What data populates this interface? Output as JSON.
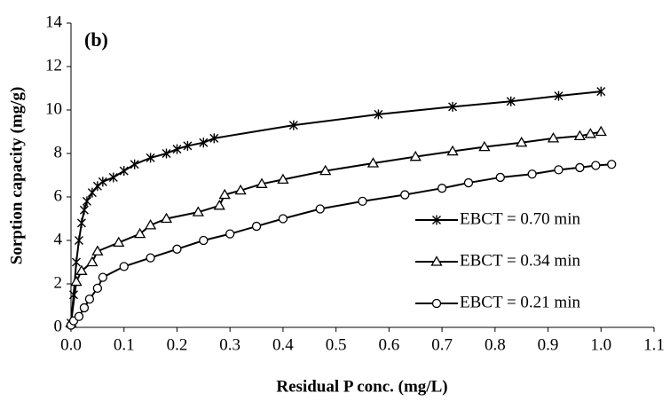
{
  "chart_data": {
    "type": "line",
    "annotation": "(b)",
    "x_label": "Residual P conc. (mg/L)",
    "y_label": "Sorption capacity (mg/g)",
    "xlim": [
      0,
      1.1
    ],
    "xticks": [
      {
        "value": 0,
        "label": "0.0"
      },
      0.1,
      0.2,
      0.3,
      0.4,
      0.5,
      0.6,
      0.7,
      0.8,
      0.9,
      {
        "value": 1,
        "label": "1.0"
      },
      1.1
    ],
    "ylim": [
      0,
      14
    ],
    "yticks": [
      0,
      2,
      4,
      6,
      8,
      10,
      12,
      14
    ],
    "legend": "lower right",
    "series": [
      {
        "name": "EBCT = 0.70 min",
        "color": "#000000",
        "marker": "asterisk",
        "x": [
          0,
          0.005,
          0.01,
          0.015,
          0.02,
          0.025,
          0.03,
          0.04,
          0.05,
          0.06,
          0.08,
          0.1,
          0.12,
          0.15,
          0.18,
          0.2,
          0.22,
          0.25,
          0.27,
          0.42,
          0.58,
          0.72,
          0.83,
          0.92,
          1.0
        ],
        "values": [
          0.2,
          1.5,
          3,
          4,
          4.8,
          5.4,
          5.8,
          6.2,
          6.5,
          6.7,
          6.9,
          7.2,
          7.5,
          7.8,
          8.0,
          8.2,
          8.35,
          8.5,
          8.7,
          9.3,
          9.8,
          10.15,
          10.4,
          10.65,
          10.85
        ]
      },
      {
        "name": "EBCT = 0.34 min",
        "color": "#000000",
        "marker": "triangle",
        "x": [
          0,
          0.01,
          0.02,
          0.04,
          0.05,
          0.09,
          0.13,
          0.15,
          0.18,
          0.24,
          0.28,
          0.29,
          0.32,
          0.36,
          0.4,
          0.48,
          0.57,
          0.65,
          0.72,
          0.78,
          0.85,
          0.91,
          0.96,
          0.98,
          1.0
        ],
        "values": [
          0.2,
          2.1,
          2.6,
          3.0,
          3.5,
          3.9,
          4.3,
          4.7,
          5.0,
          5.3,
          5.6,
          6.1,
          6.3,
          6.6,
          6.8,
          7.2,
          7.55,
          7.85,
          8.1,
          8.3,
          8.5,
          8.7,
          8.8,
          8.9,
          9.0
        ]
      },
      {
        "name": "EBCT = 0.21 min",
        "color": "#000000",
        "marker": "circle",
        "x": [
          0,
          0.005,
          0.015,
          0.025,
          0.035,
          0.05,
          0.06,
          0.1,
          0.15,
          0.2,
          0.25,
          0.3,
          0.35,
          0.4,
          0.47,
          0.55,
          0.63,
          0.7,
          0.75,
          0.81,
          0.87,
          0.92,
          0.96,
          0.99,
          1.02
        ],
        "values": [
          0.1,
          0.3,
          0.5,
          0.9,
          1.3,
          1.8,
          2.3,
          2.8,
          3.2,
          3.6,
          4.0,
          4.3,
          4.65,
          5.0,
          5.45,
          5.8,
          6.1,
          6.4,
          6.65,
          6.9,
          7.05,
          7.25,
          7.35,
          7.45,
          7.5
        ]
      }
    ]
  }
}
